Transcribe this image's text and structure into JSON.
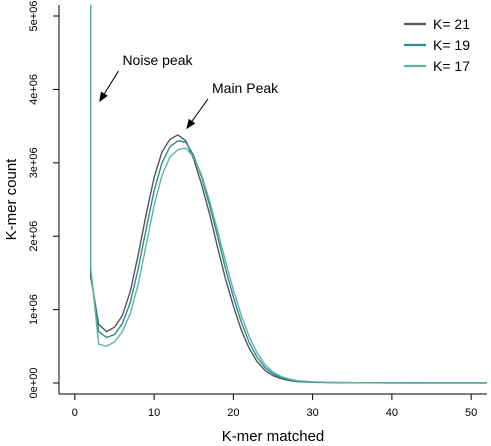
{
  "chart_data": {
    "type": "line",
    "title": "",
    "xlabel": "K-mer matched",
    "ylabel": "K-mer count",
    "xlim": [
      -2,
      52
    ],
    "ylim": [
      -150000,
      5150000
    ],
    "x_ticks": [
      0,
      10,
      20,
      30,
      40,
      50
    ],
    "x_tick_labels": [
      "0",
      "10",
      "20",
      "30",
      "40",
      "50"
    ],
    "y_ticks": [
      0,
      1000000,
      2000000,
      3000000,
      4000000,
      5000000
    ],
    "y_tick_labels": [
      "0e+00",
      "1e+06",
      "2e+06",
      "3e+06",
      "4e+06",
      "5e+06"
    ],
    "grid": false,
    "legend_position": "top-right",
    "series": [
      {
        "name": "K= 21",
        "color": "#555555",
        "x": [
          2,
          3,
          4,
          5,
          6,
          7,
          8,
          9,
          10,
          11,
          12,
          13,
          14,
          15,
          16,
          17,
          18,
          19,
          20,
          21,
          22,
          23,
          24,
          25,
          26,
          27,
          28,
          30,
          32,
          35,
          40,
          45,
          50,
          52
        ],
        "y": [
          1450000,
          800000,
          700000,
          760000,
          920000,
          1250000,
          1750000,
          2300000,
          2800000,
          3150000,
          3320000,
          3380000,
          3300000,
          3050000,
          2700000,
          2300000,
          1850000,
          1420000,
          1050000,
          720000,
          470000,
          290000,
          170000,
          100000,
          60000,
          35000,
          20000,
          10000,
          6000,
          3000,
          1000,
          500,
          200,
          100
        ]
      },
      {
        "name": "K= 19",
        "color": "#2e8b8b",
        "x": [
          2,
          3,
          4,
          5,
          6,
          7,
          8,
          9,
          10,
          11,
          12,
          13,
          14,
          15,
          16,
          17,
          18,
          19,
          20,
          21,
          22,
          23,
          24,
          25,
          26,
          27,
          28,
          30,
          32,
          35,
          40,
          45,
          50,
          52
        ],
        "y": [
          1520000,
          700000,
          620000,
          660000,
          810000,
          1100000,
          1560000,
          2100000,
          2620000,
          3000000,
          3220000,
          3300000,
          3280000,
          3100000,
          2800000,
          2420000,
          2000000,
          1560000,
          1170000,
          830000,
          550000,
          350000,
          210000,
          125000,
          75000,
          45000,
          27000,
          13000,
          8000,
          4000,
          1500,
          600,
          250,
          120
        ]
      },
      {
        "name": "K= 17",
        "color": "#5fb3a3",
        "x": [
          2,
          3,
          4,
          5,
          6,
          7,
          8,
          9,
          10,
          11,
          12,
          13,
          14,
          15,
          16,
          17,
          18,
          19,
          20,
          21,
          22,
          23,
          24,
          25,
          26,
          27,
          28,
          30,
          32,
          35,
          40,
          45,
          50,
          52
        ],
        "y": [
          1580000,
          530000,
          500000,
          560000,
          700000,
          950000,
          1350000,
          1880000,
          2420000,
          2830000,
          3080000,
          3180000,
          3200000,
          3080000,
          2830000,
          2480000,
          2080000,
          1660000,
          1270000,
          920000,
          630000,
          410000,
          250000,
          150000,
          90000,
          55000,
          33000,
          16000,
          9000,
          5000,
          2000,
          800,
          300,
          150
        ]
      }
    ],
    "noise_spike": {
      "x": 2,
      "y_top": 5150000
    },
    "annotations": [
      {
        "text": "Noise peak",
        "arrow_from": [
          5.5,
          4250000
        ],
        "arrow_to": [
          3.2,
          3850000
        ]
      },
      {
        "text": "Main Peak",
        "arrow_from": [
          16.8,
          3870000
        ],
        "arrow_to": [
          14.2,
          3480000
        ]
      }
    ]
  }
}
